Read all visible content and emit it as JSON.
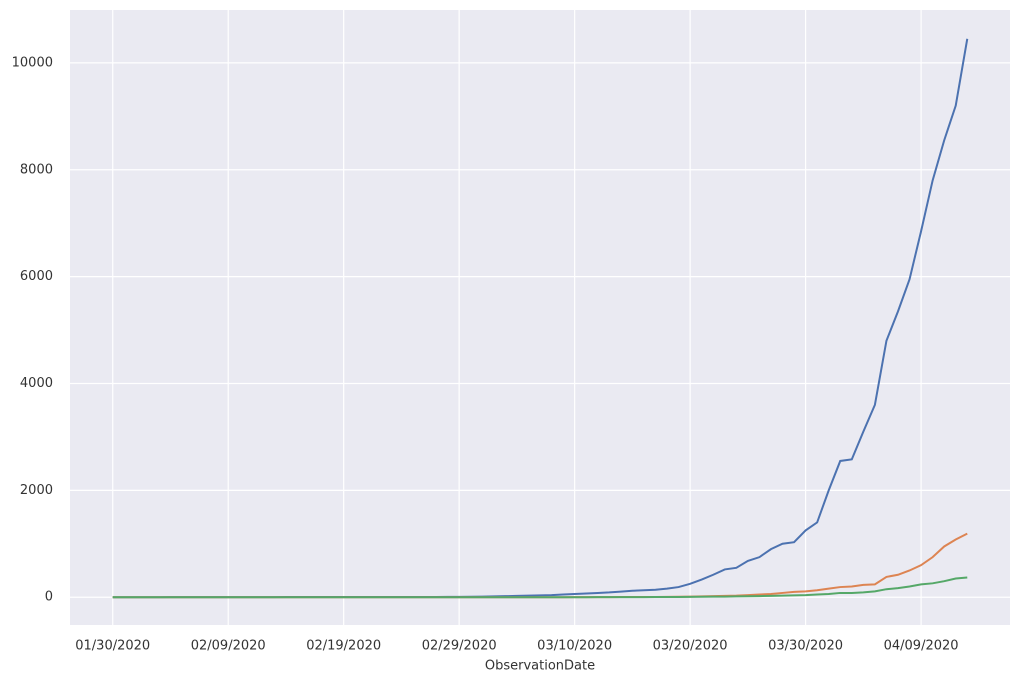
{
  "chart_data": {
    "type": "line",
    "xlabel": "ObservationDate",
    "x": [
      "01/30/2020",
      "01/31/2020",
      "02/01/2020",
      "02/02/2020",
      "02/03/2020",
      "02/04/2020",
      "02/05/2020",
      "02/06/2020",
      "02/07/2020",
      "02/08/2020",
      "02/09/2020",
      "02/10/2020",
      "02/11/2020",
      "02/12/2020",
      "02/13/2020",
      "02/14/2020",
      "02/15/2020",
      "02/16/2020",
      "02/17/2020",
      "02/18/2020",
      "02/19/2020",
      "02/20/2020",
      "02/21/2020",
      "02/22/2020",
      "02/23/2020",
      "02/24/2020",
      "02/25/2020",
      "02/26/2020",
      "02/27/2020",
      "02/28/2020",
      "02/29/2020",
      "03/01/2020",
      "03/02/2020",
      "03/03/2020",
      "03/04/2020",
      "03/05/2020",
      "03/06/2020",
      "03/07/2020",
      "03/08/2020",
      "03/09/2020",
      "03/10/2020",
      "03/11/2020",
      "03/12/2020",
      "03/13/2020",
      "03/14/2020",
      "03/15/2020",
      "03/16/2020",
      "03/17/2020",
      "03/18/2020",
      "03/19/2020",
      "03/20/2020",
      "03/21/2020",
      "03/22/2020",
      "03/23/2020",
      "03/24/2020",
      "03/25/2020",
      "03/26/2020",
      "03/27/2020",
      "03/28/2020",
      "03/29/2020",
      "03/30/2020",
      "03/31/2020",
      "04/01/2020",
      "04/02/2020",
      "04/03/2020",
      "04/04/2020",
      "04/05/2020",
      "04/06/2020",
      "04/07/2020",
      "04/08/2020",
      "04/09/2020",
      "04/10/2020",
      "04/11/2020",
      "04/12/2020",
      "04/13/2020"
    ],
    "series": [
      {
        "color": "#4c72b0",
        "values": [
          0,
          0,
          0,
          0,
          0,
          1,
          1,
          1,
          1,
          1,
          2,
          2,
          2,
          2,
          2,
          3,
          3,
          3,
          3,
          3,
          3,
          3,
          3,
          3,
          4,
          4,
          4,
          5,
          5,
          6,
          7,
          9,
          12,
          15,
          20,
          25,
          30,
          35,
          40,
          50,
          60,
          70,
          80,
          90,
          105,
          120,
          130,
          140,
          160,
          190,
          250,
          330,
          420,
          520,
          550,
          680,
          750,
          900,
          1000,
          1030,
          1250,
          1400,
          2000,
          2550,
          2580,
          3100,
          3600,
          4800,
          5350,
          5950,
          6850,
          7800,
          8550,
          9200,
          10450
        ]
      },
      {
        "color": "#dd8452",
        "values": [
          0,
          0,
          0,
          0,
          0,
          0,
          0,
          0,
          0,
          0,
          0,
          0,
          0,
          0,
          0,
          0,
          0,
          0,
          0,
          0,
          0,
          0,
          0,
          0,
          0,
          0,
          0,
          0,
          0,
          0,
          0,
          0,
          0,
          0,
          0,
          0,
          0,
          0,
          0,
          0,
          1,
          1,
          2,
          2,
          3,
          3,
          4,
          5,
          6,
          8,
          10,
          15,
          20,
          25,
          30,
          40,
          50,
          60,
          80,
          100,
          110,
          130,
          160,
          190,
          200,
          230,
          240,
          380,
          420,
          500,
          600,
          750,
          950,
          1080,
          1190
        ]
      },
      {
        "color": "#55a868",
        "values": [
          0,
          0,
          0,
          0,
          0,
          0,
          0,
          0,
          0,
          0,
          0,
          0,
          0,
          0,
          0,
          0,
          0,
          0,
          0,
          0,
          0,
          0,
          0,
          0,
          0,
          0,
          0,
          0,
          0,
          0,
          0,
          0,
          0,
          0,
          0,
          0,
          0,
          0,
          0,
          0,
          0,
          0,
          1,
          1,
          1,
          2,
          2,
          3,
          4,
          5,
          6,
          8,
          10,
          12,
          15,
          18,
          21,
          25,
          30,
          35,
          40,
          50,
          60,
          80,
          80,
          90,
          110,
          150,
          170,
          200,
          240,
          260,
          300,
          350,
          370
        ]
      }
    ],
    "xticks": [
      "01/30/2020",
      "02/09/2020",
      "02/19/2020",
      "02/29/2020",
      "03/10/2020",
      "03/20/2020",
      "03/30/2020",
      "04/09/2020"
    ],
    "ylim": [
      -520,
      10990
    ],
    "yticks": [
      0,
      2000,
      4000,
      6000,
      8000,
      10000
    ],
    "grid": true
  }
}
